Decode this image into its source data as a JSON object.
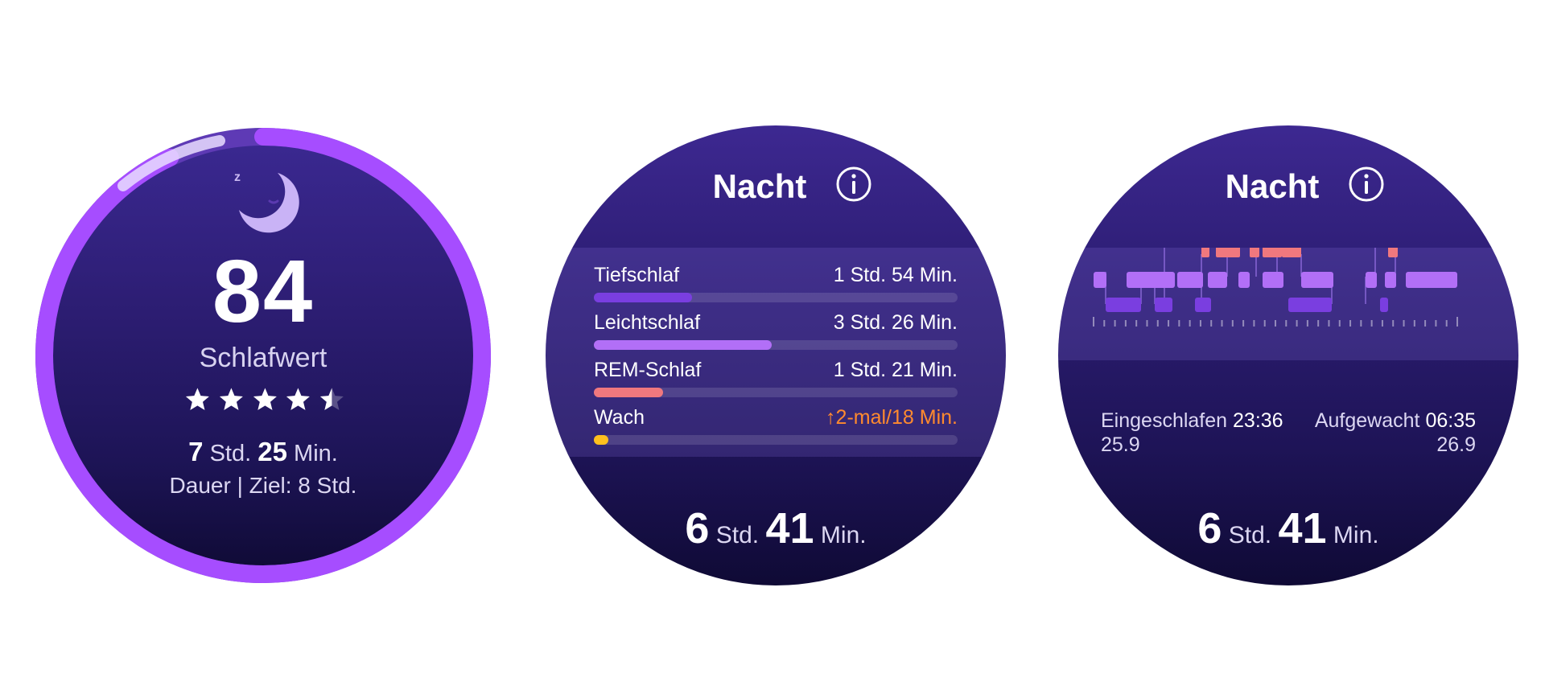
{
  "watch1": {
    "icon": "moon-sleep-icon",
    "score": "84",
    "score_label": "Schlafwert",
    "stars_rating": 4.5,
    "stars_max": 5,
    "duration": {
      "hours": "7",
      "hours_unit": "Std.",
      "minutes": "25",
      "minutes_unit": "Min."
    },
    "goal_text": "Dauer | Ziel: 8 Std.",
    "ring_progress": 0.93,
    "colors": {
      "ring": "#a64dff",
      "ring_light": "#e9ddff"
    }
  },
  "watch2": {
    "title": "Nacht",
    "info_icon": "info-icon",
    "stages": [
      {
        "name": "Tiefschlaf",
        "value": "1 Std. 54 Min.",
        "fraction": 0.27,
        "color": "#7a3ee0",
        "alert": false
      },
      {
        "name": "Leichtschlaf",
        "value": "3 Std. 26 Min.",
        "fraction": 0.49,
        "color": "#b26ff7",
        "alert": false
      },
      {
        "name": "REM-Schlaf",
        "value": "1 Std. 21 Min.",
        "fraction": 0.19,
        "color": "#f0787e",
        "alert": false
      },
      {
        "name": "Wach",
        "value": "2-mal/18 Min.",
        "fraction": 0.04,
        "color": "#ffc01e",
        "alert": true
      }
    ],
    "total": {
      "hours": "6",
      "hours_unit": "Std.",
      "minutes": "41",
      "minutes_unit": "Min."
    }
  },
  "watch3": {
    "title": "Nacht",
    "info_icon": "info-icon",
    "asleep_label": "Eingeschlafen",
    "asleep_time": "23:36",
    "asleep_sub": "25.9",
    "awake_label": "Aufgewacht",
    "awake_time": "06:35",
    "awake_sub": "26.9",
    "total": {
      "hours": "6",
      "hours_unit": "Std.",
      "minutes": "41",
      "minutes_unit": "Min."
    },
    "legend_colors": {
      "wach": "#ffc01e",
      "rem": "#f0787e",
      "leicht": "#b26ff7",
      "tief": "#7a3ee0"
    }
  }
}
